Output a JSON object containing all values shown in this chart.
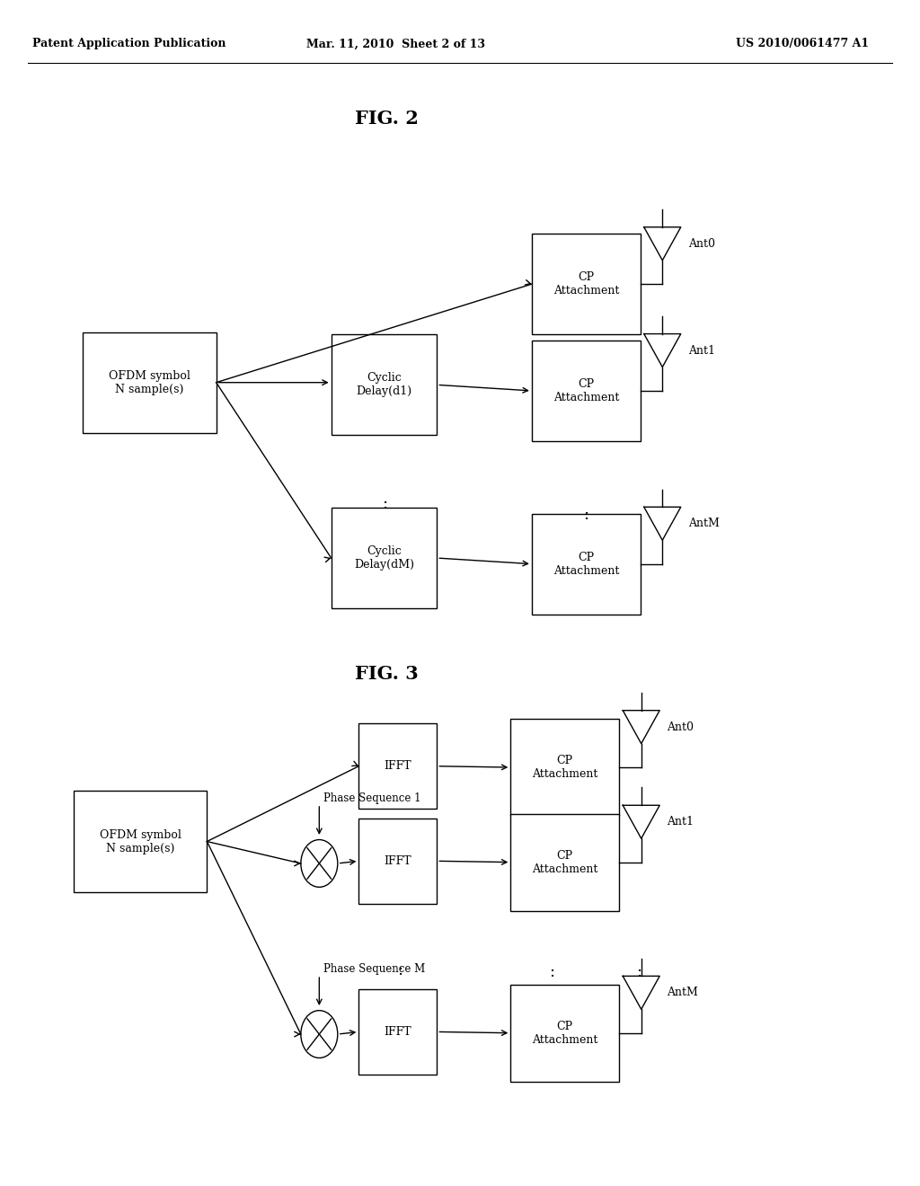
{
  "bg_color": "#ffffff",
  "header_left": "Patent Application Publication",
  "header_mid": "Mar. 11, 2010  Sheet 2 of 13",
  "header_right": "US 2010/0061477 A1",
  "fig2_title": "FIG. 2",
  "fig3_title": "FIG. 3"
}
